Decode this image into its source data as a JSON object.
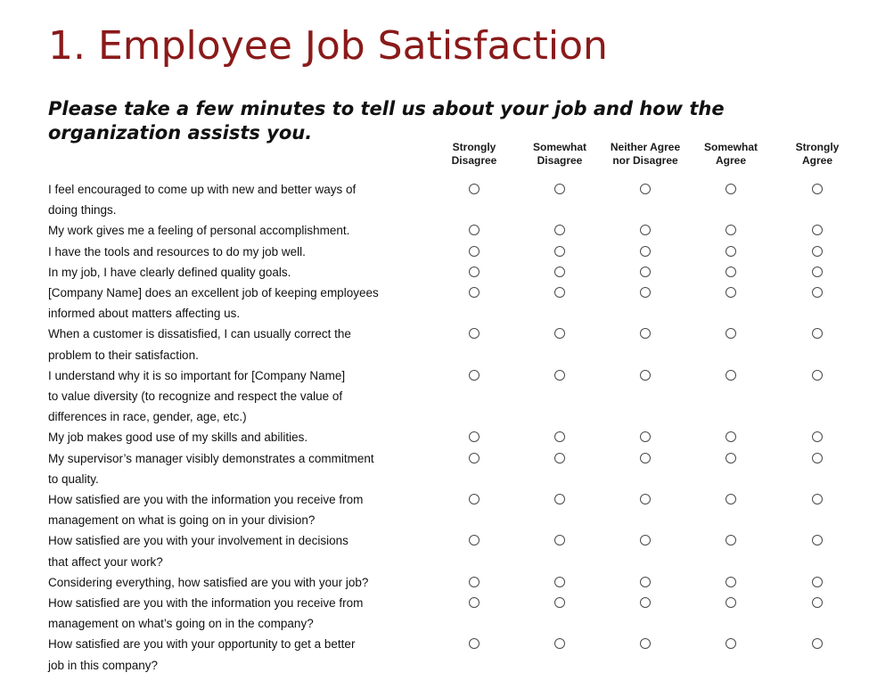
{
  "title": "1. Employee Job Satisfaction",
  "subtitle": "Please take a few minutes to tell us about your job and how the organization assists you.",
  "columns": [
    {
      "label": "Strongly\nDisagree"
    },
    {
      "label": "Somewhat\nDisagree"
    },
    {
      "label": "Neither Agree\nnor Disagree"
    },
    {
      "label": "Somewhat\nAgree"
    },
    {
      "label": "Strongly\nAgree"
    }
  ],
  "questions": [
    {
      "text": "I feel encouraged to come up with new and better ways of\ndoing things."
    },
    {
      "text": "My work gives me a feeling of personal accomplishment."
    },
    {
      "text": "I have the tools and resources to do my job well."
    },
    {
      "text": "In my job, I have clearly defined quality goals."
    },
    {
      "text": "[Company Name] does an excellent job of keeping employees\ninformed about matters affecting us."
    },
    {
      "text": "When a customer is dissatisfied, I can usually correct the\nproblem to their satisfaction."
    },
    {
      "text": "I understand why it is so important for [Company Name]\nto value diversity (to recognize and respect the value of\ndifferences in race, gender, age, etc.)"
    },
    {
      "text": "My job makes good use of my skills and abilities."
    },
    {
      "text": "My supervisor’s manager visibly demonstrates a commitment\nto quality."
    },
    {
      "text": "How satisfied are you with the information you receive from\nmanagement on what is going on in your division?"
    },
    {
      "text": "How satisfied are you with your involvement in decisions\nthat affect your work?"
    },
    {
      "text": "Considering everything, how satisfied are you with your job?"
    },
    {
      "text": "How satisfied are you with the information you receive from\nmanagement on what’s going on in the company?"
    },
    {
      "text": "How satisfied are you with your opportunity to get a better\njob in this company?"
    }
  ]
}
